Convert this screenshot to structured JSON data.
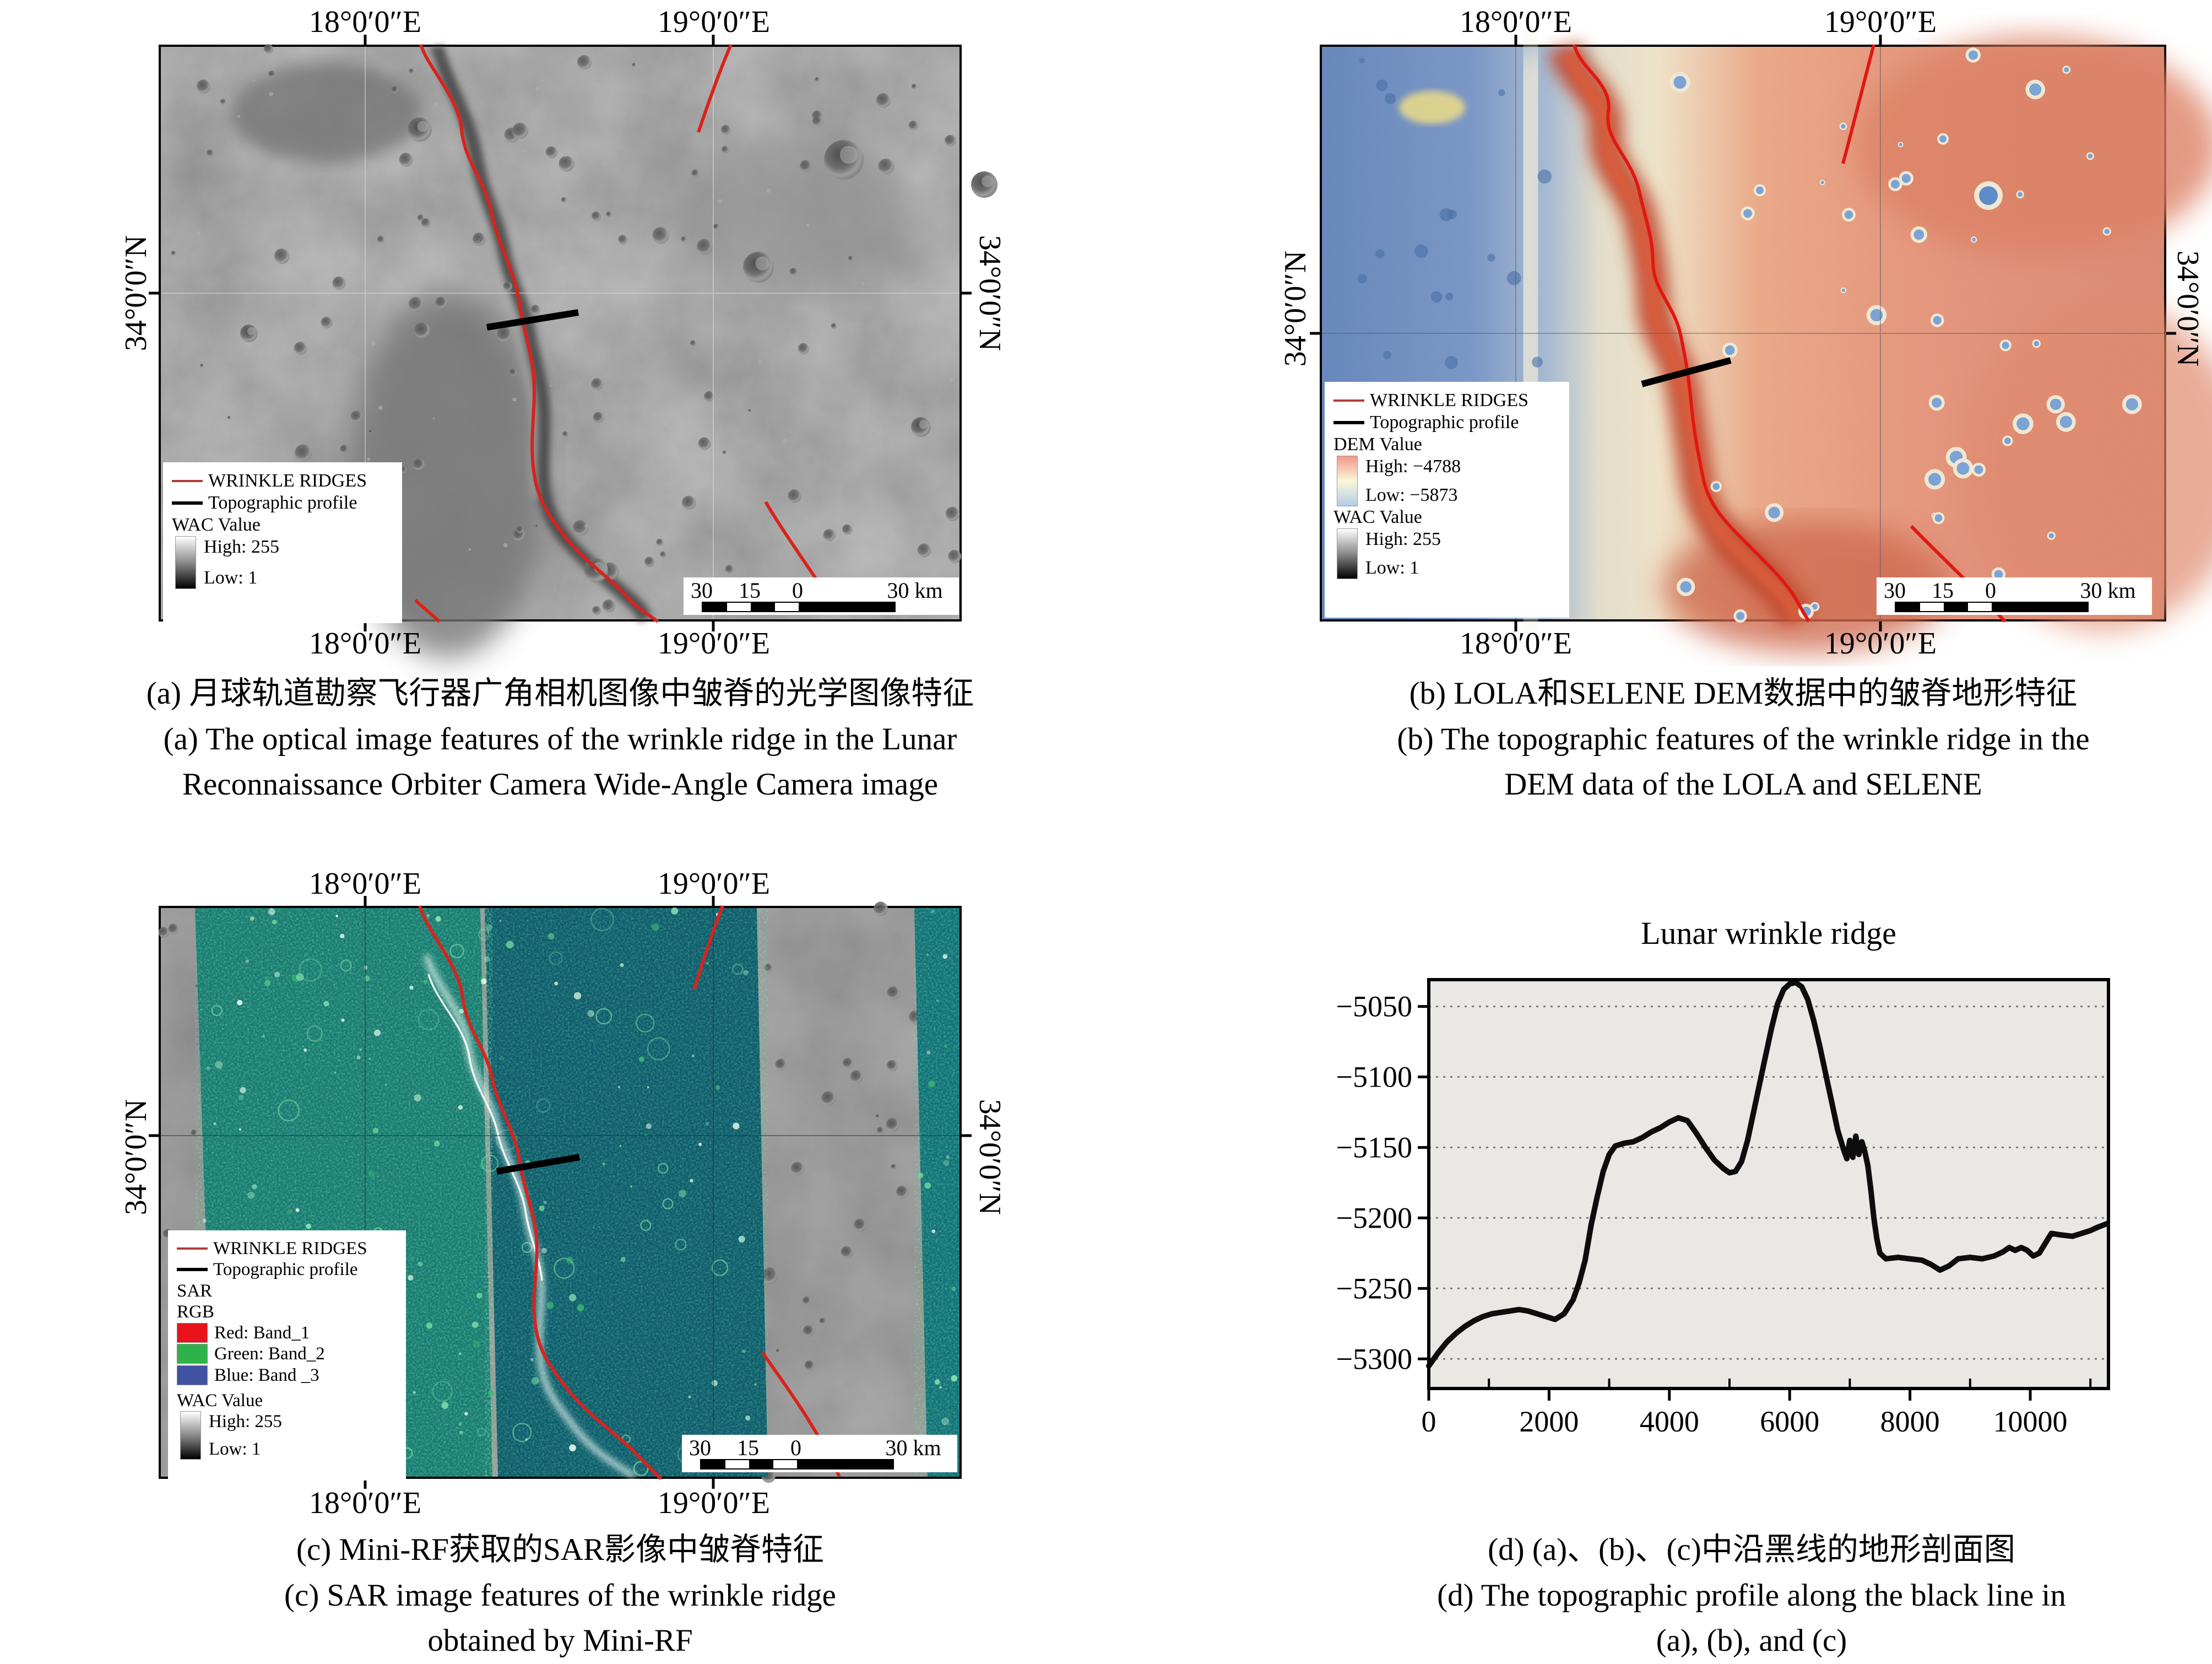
{
  "accent_colors": {
    "wrinkle_red": "#d8231d",
    "legend_red": "#b23b39",
    "profile_black": "#000000"
  },
  "panel_a": {
    "coords": {
      "top_left": "18°0′0″E",
      "top_right": "19°0′0″E",
      "bottom_left": "18°0′0″E",
      "bottom_right": "19°0′0″E",
      "left": "34°0′0″N",
      "right": "34°0′0″N"
    },
    "legend": {
      "ridges": "WRINKLE RIDGES",
      "profile": "Topographic profile",
      "wac_title": "WAC Value",
      "wac_high": "High: 255",
      "wac_low": "Low: 1"
    },
    "scalebar": {
      "t30": "30",
      "t15": "15",
      "t0": "0",
      "t30km": "30 km"
    },
    "caption": {
      "zh": "(a) 月球轨道勘察飞行器广角相机图像中皱脊的光学图像特征",
      "en1": "(a) The optical image features of the wrinkle ridge in the Lunar",
      "en2": "Reconnaissance Orbiter Camera Wide-Angle Camera image"
    }
  },
  "panel_b": {
    "coords": {
      "top_left": "18°0′0″E",
      "top_right": "19°0′0″E",
      "bottom_left": "18°0′0″E",
      "bottom_right": "19°0′0″E",
      "left": "34°0′0″N",
      "right": "34°0′0″N"
    },
    "legend": {
      "ridges": "WRINKLE RIDGES",
      "profile": "Topographic profile",
      "dem_title": "DEM Value",
      "dem_high": "High: −4788",
      "dem_low": "Low: −5873",
      "wac_title": "WAC Value",
      "wac_high": "High: 255",
      "wac_low": "Low: 1"
    },
    "scalebar": {
      "t30": "30",
      "t15": "15",
      "t0": "0",
      "t30km": "30 km"
    },
    "caption": {
      "zh": "(b) LOLA和SELENE DEM数据中的皱脊地形特征",
      "en1": "(b) The topographic features of the wrinkle ridge in the",
      "en2": "DEM data of the LOLA and SELENE"
    }
  },
  "panel_c": {
    "coords": {
      "top_left": "18°0′0″E",
      "top_right": "19°0′0″E",
      "bottom_left": "18°0′0″E",
      "bottom_right": "19°0′0″E",
      "left": "34°0′0″N",
      "right": "34°0′0″N"
    },
    "legend": {
      "ridges": "WRINKLE RIDGES",
      "profile": "Topographic profile",
      "sar_title": "SAR",
      "rgb_title": "RGB",
      "band_red": "Red: Band_1",
      "band_green": "Green: Band_2",
      "band_blue": "Blue: Band _3",
      "wac_title": "WAC Value",
      "wac_high": "High: 255",
      "wac_low": "Low: 1"
    },
    "scalebar": {
      "t30": "30",
      "t15": "15",
      "t0": "0",
      "t30km": "30 km"
    },
    "caption": {
      "zh": "(c) Mini-RF获取的SAR影像中皱脊特征",
      "en1": "(c) SAR image features of the wrinkle ridge",
      "en2": "obtained by Mini-RF"
    }
  },
  "panel_d": {
    "caption": {
      "zh": "(d) (a)、(b)、(c)中沿黑线的地形剖面图",
      "en1": "(d) The topographic profile along the black line in",
      "en2": "(a), (b), and (c)"
    }
  },
  "chart_data": {
    "type": "line",
    "title": "Lunar wrinkle ridge",
    "xlabel": "",
    "ylabel": "",
    "xlim": [
      0,
      11300
    ],
    "ylim": [
      -5321,
      -5031
    ],
    "x_ticks": [
      0,
      2000,
      4000,
      6000,
      8000,
      10000
    ],
    "x_minor_step": 1000,
    "y_ticks": [
      -5300,
      -5250,
      -5200,
      -5150,
      -5100,
      -5050
    ],
    "grid": "dotted-horizontal",
    "legend_position": "none",
    "series": [
      {
        "name": "Topographic profile",
        "points": [
          [
            0,
            -5305
          ],
          [
            150,
            -5296
          ],
          [
            300,
            -5288
          ],
          [
            450,
            -5282
          ],
          [
            600,
            -5277
          ],
          [
            750,
            -5273
          ],
          [
            900,
            -5270
          ],
          [
            1050,
            -5268
          ],
          [
            1200,
            -5267
          ],
          [
            1350,
            -5266
          ],
          [
            1500,
            -5265
          ],
          [
            1650,
            -5266
          ],
          [
            1800,
            -5268
          ],
          [
            1950,
            -5270
          ],
          [
            2100,
            -5272
          ],
          [
            2250,
            -5268
          ],
          [
            2400,
            -5258
          ],
          [
            2500,
            -5246
          ],
          [
            2600,
            -5230
          ],
          [
            2700,
            -5205
          ],
          [
            2800,
            -5185
          ],
          [
            2900,
            -5167
          ],
          [
            3000,
            -5155
          ],
          [
            3100,
            -5149
          ],
          [
            3250,
            -5147
          ],
          [
            3400,
            -5146
          ],
          [
            3550,
            -5143
          ],
          [
            3700,
            -5139
          ],
          [
            3850,
            -5136
          ],
          [
            4000,
            -5132
          ],
          [
            4150,
            -5129
          ],
          [
            4300,
            -5131
          ],
          [
            4450,
            -5140
          ],
          [
            4600,
            -5150
          ],
          [
            4750,
            -5159
          ],
          [
            4900,
            -5165
          ],
          [
            5000,
            -5168
          ],
          [
            5100,
            -5167
          ],
          [
            5200,
            -5160
          ],
          [
            5300,
            -5145
          ],
          [
            5400,
            -5125
          ],
          [
            5500,
            -5105
          ],
          [
            5600,
            -5085
          ],
          [
            5700,
            -5065
          ],
          [
            5800,
            -5048
          ],
          [
            5900,
            -5038
          ],
          [
            6000,
            -5034
          ],
          [
            6100,
            -5033
          ],
          [
            6200,
            -5036
          ],
          [
            6300,
            -5045
          ],
          [
            6400,
            -5060
          ],
          [
            6500,
            -5078
          ],
          [
            6600,
            -5098
          ],
          [
            6700,
            -5118
          ],
          [
            6800,
            -5138
          ],
          [
            6900,
            -5152
          ],
          [
            6950,
            -5158
          ],
          [
            7000,
            -5145
          ],
          [
            7050,
            -5157
          ],
          [
            7100,
            -5142
          ],
          [
            7150,
            -5155
          ],
          [
            7200,
            -5146
          ],
          [
            7250,
            -5153
          ],
          [
            7300,
            -5163
          ],
          [
            7350,
            -5180
          ],
          [
            7400,
            -5200
          ],
          [
            7450,
            -5215
          ],
          [
            7500,
            -5225
          ],
          [
            7600,
            -5229
          ],
          [
            7800,
            -5228
          ],
          [
            8000,
            -5229
          ],
          [
            8200,
            -5230
          ],
          [
            8350,
            -5233
          ],
          [
            8500,
            -5237
          ],
          [
            8650,
            -5234
          ],
          [
            8800,
            -5229
          ],
          [
            9000,
            -5228
          ],
          [
            9200,
            -5229
          ],
          [
            9400,
            -5227
          ],
          [
            9550,
            -5224
          ],
          [
            9650,
            -5221
          ],
          [
            9750,
            -5223
          ],
          [
            9850,
            -5221
          ],
          [
            9950,
            -5223
          ],
          [
            10050,
            -5227
          ],
          [
            10150,
            -5225
          ],
          [
            10250,
            -5218
          ],
          [
            10350,
            -5211
          ],
          [
            10500,
            -5212
          ],
          [
            10700,
            -5213
          ],
          [
            10850,
            -5211
          ],
          [
            11000,
            -5209
          ],
          [
            11100,
            -5207
          ],
          [
            11280,
            -5204
          ]
        ]
      }
    ]
  }
}
